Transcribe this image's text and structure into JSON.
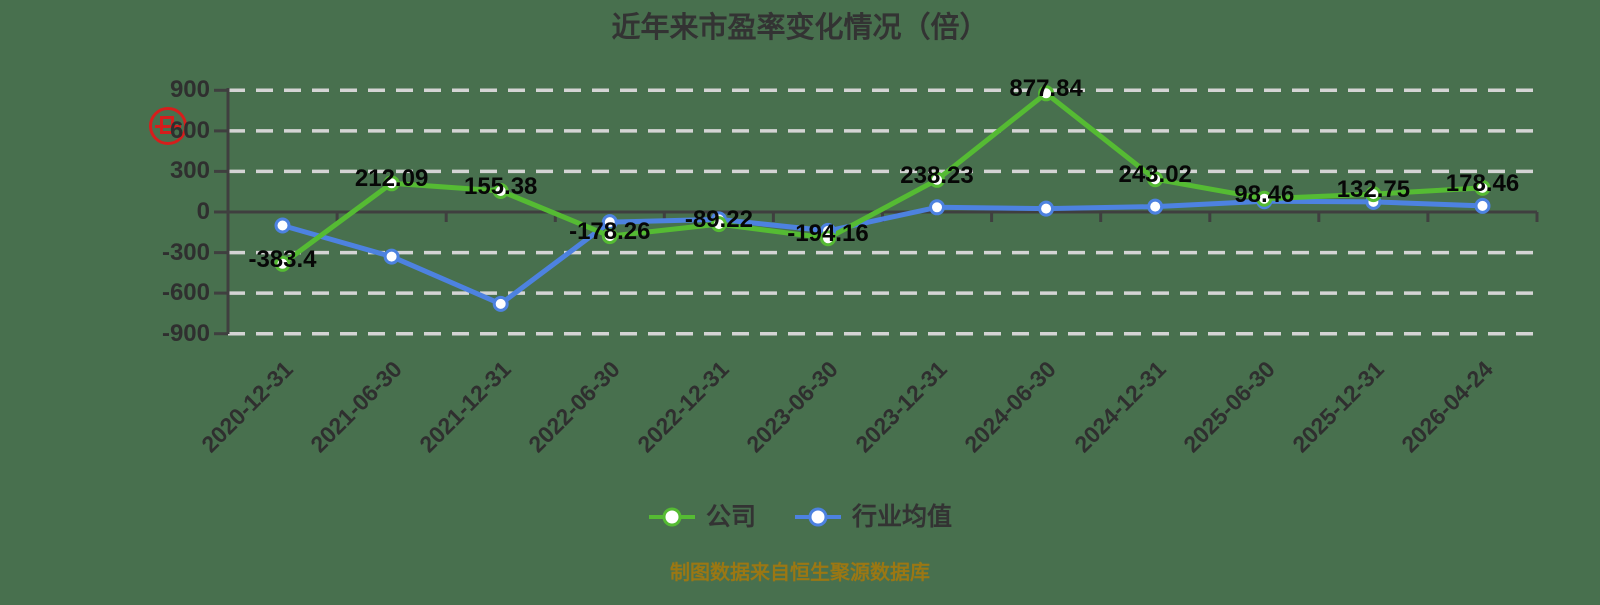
{
  "title": "近年来市盈率变化情况（倍）",
  "source_note": "制图数据来自恒生聚源数据库",
  "legend": [
    {
      "label": "公司",
      "color": "#55bb33"
    },
    {
      "label": "行业均值",
      "color": "#4d82e0"
    }
  ],
  "colors": {
    "background": "#48704e",
    "grid": "#d4d4d4",
    "axis": "#3f3f3f",
    "tick_label": "#2f2f2f",
    "data_label": "#070707",
    "title": "#333333",
    "source": "#9b7713",
    "seal": "#e21818",
    "marker_fill": "#ffffff"
  },
  "chart_data": {
    "type": "line",
    "categories": [
      "2020-12-31",
      "2021-06-30",
      "2021-12-31",
      "2022-06-30",
      "2022-12-31",
      "2023-06-30",
      "2023-12-31",
      "2024-06-30",
      "2024-12-31",
      "2025-06-30",
      "2025-12-31",
      "2026-04-24"
    ],
    "y_ticks": [
      900,
      600,
      300,
      0,
      -300,
      -600,
      -900
    ],
    "y_tick_labels": [
      "900",
      "600",
      "300",
      "0",
      "-300",
      "-600",
      "-900"
    ],
    "ylim": [
      -900,
      900
    ],
    "grid": "dashed horizontal lines",
    "legend_position": "bottom",
    "series": [
      {
        "id": "company",
        "name": "公司",
        "color": "#55bb33",
        "values": [
          -383.4,
          212.09,
          155.38,
          -178.26,
          -89.22,
          -194.16,
          238.23,
          877.84,
          243.02,
          98.46,
          132.75,
          178.46
        ],
        "labels": [
          "-383.4",
          "212.09",
          "155.38",
          "-178.26",
          "-89.22",
          "-194.16",
          "238.23",
          "877.84",
          "243.02",
          "98.46",
          "132.75",
          "178.46"
        ]
      },
      {
        "id": "industry",
        "name": "行业均值",
        "color": "#4d82e0",
        "values": [
          -100,
          -330,
          -680,
          -75,
          -55,
          -140,
          35,
          25,
          40,
          80,
          75,
          45
        ],
        "values_estimated": true
      }
    ]
  }
}
